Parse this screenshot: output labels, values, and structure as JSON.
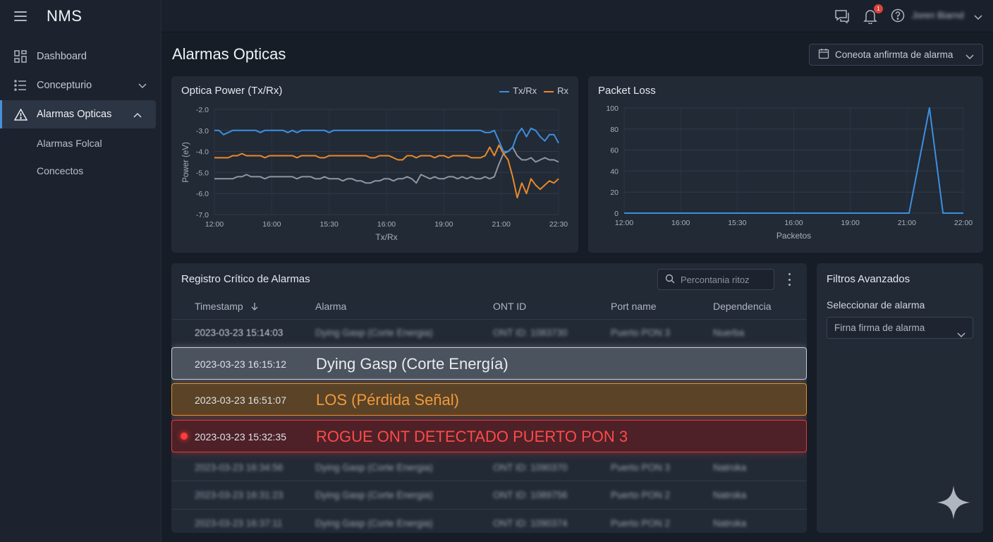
{
  "app": {
    "brand": "NMS"
  },
  "sidebar": {
    "items": [
      {
        "label": "Dashboard"
      },
      {
        "label": "Concepturio"
      },
      {
        "label": "Alarmas Opticas"
      }
    ],
    "subitems": [
      {
        "label": "Alarmas Folcal"
      },
      {
        "label": "Concectos"
      }
    ]
  },
  "topbar": {
    "notification_count": "1",
    "user_name": "Joren Biarnd"
  },
  "page": {
    "title": "Alarmas Opticas",
    "date_button": "Coneota anfirmta de alarma"
  },
  "colors": {
    "tx": "#3d8fe0",
    "rx": "#e8892b",
    "gray_series": "#8e96a3",
    "critical": "#e23a3a",
    "accent": "#4a90d9"
  },
  "chart_data": [
    {
      "type": "line",
      "title": "Optica Power (Tx/Rx)",
      "xlabel": "Tx/Rx",
      "ylabel": "Power (eV)",
      "x_ticks": [
        "12:00",
        "16:00",
        "15:30",
        "16:00",
        "19:00",
        "21:00",
        "22:30"
      ],
      "y_ticks": [
        "-2.0",
        "-3.0",
        "-4.0",
        "-5.0",
        "-6.0",
        "-7.0"
      ],
      "ylim": [
        -7.0,
        -2.0
      ],
      "grid": true,
      "legend": [
        "Tx/Rx",
        "Rx"
      ],
      "series": [
        {
          "name": "Tx/Rx",
          "color": "#3d8fe0",
          "values": [
            -3.0,
            -3.0,
            -3.2,
            -3.1,
            -3.0,
            -3.0,
            -3.0,
            -3.0,
            -3.0,
            -3.0,
            -3.1,
            -3.0,
            -3.0,
            -3.0,
            -3.0,
            -3.0,
            -3.1,
            -3.0,
            -3.1,
            -3.0,
            -3.0,
            -3.0,
            -3.0,
            -3.0,
            -3.0,
            -3.1,
            -3.0,
            -3.0,
            -3.0,
            -3.0,
            -3.0,
            -3.0,
            -3.0,
            -3.0,
            -3.0,
            -3.0,
            -3.0,
            -3.0,
            -3.0,
            -3.0,
            -3.0,
            -3.0,
            -3.0,
            -3.0,
            -3.0,
            -3.0,
            -3.0,
            -3.0,
            -3.0,
            -3.0,
            -3.0,
            -3.0,
            -3.0,
            -3.0,
            -3.0,
            -3.0,
            -3.0,
            -3.0,
            -3.0,
            -3.1,
            -3.1,
            -3.0,
            -3.5,
            -4.0,
            -4.0,
            -3.8,
            -3.2,
            -2.9,
            -3.3,
            -2.9,
            -3.0,
            -3.3,
            -3.5,
            -3.2,
            -3.2,
            -3.6
          ]
        },
        {
          "name": "Rx",
          "color": "#e8892b",
          "values": [
            -4.3,
            -4.3,
            -4.3,
            -4.3,
            -4.2,
            -4.2,
            -4.1,
            -4.2,
            -4.2,
            -4.2,
            -4.2,
            -4.3,
            -4.2,
            -4.2,
            -4.2,
            -4.2,
            -4.2,
            -4.2,
            -4.3,
            -4.2,
            -4.2,
            -4.2,
            -4.2,
            -4.3,
            -4.3,
            -4.2,
            -4.2,
            -4.2,
            -4.2,
            -4.2,
            -4.2,
            -4.2,
            -4.2,
            -4.2,
            -4.3,
            -4.3,
            -4.2,
            -4.2,
            -4.2,
            -4.3,
            -4.4,
            -4.4,
            -4.2,
            -4.2,
            -4.3,
            -4.2,
            -4.2,
            -4.2,
            -4.3,
            -4.2,
            -4.2,
            -4.3,
            -4.2,
            -4.2,
            -4.2,
            -4.2,
            -4.3,
            -4.3,
            -4.3,
            -4.2,
            -3.8,
            -4.2,
            -3.7,
            -4.1,
            -4.4,
            -5.2,
            -6.2,
            -5.5,
            -6.0,
            -5.3,
            -5.6,
            -5.8,
            -5.6,
            -5.4,
            -5.5,
            -5.3
          ]
        },
        {
          "name": "",
          "color": "#8e96a3",
          "values": [
            -5.3,
            -5.3,
            -5.3,
            -5.3,
            -5.3,
            -5.2,
            -5.2,
            -5.1,
            -5.2,
            -5.2,
            -5.2,
            -5.3,
            -5.2,
            -5.2,
            -5.2,
            -5.2,
            -5.2,
            -5.2,
            -5.3,
            -5.2,
            -5.2,
            -5.2,
            -5.3,
            -5.3,
            -5.2,
            -5.3,
            -5.3,
            -5.3,
            -5.4,
            -5.3,
            -5.3,
            -5.4,
            -5.4,
            -5.5,
            -5.5,
            -5.4,
            -5.4,
            -5.3,
            -5.3,
            -5.4,
            -5.3,
            -5.3,
            -5.2,
            -5.3,
            -5.5,
            -5.1,
            -5.2,
            -5.3,
            -5.2,
            -5.3,
            -5.3,
            -5.2,
            -5.2,
            -5.3,
            -5.2,
            -5.3,
            -5.2,
            -5.3,
            -5.3,
            -5.2,
            -5.3,
            -5.2,
            -4.6,
            -4.1,
            -4.0,
            -3.8,
            -4.2,
            -4.4,
            -4.4,
            -4.3,
            -4.5,
            -4.4,
            -4.3,
            -4.4,
            -4.4,
            -4.5
          ]
        }
      ]
    },
    {
      "type": "line",
      "title": "Packet Loss",
      "xlabel": "Packetos",
      "ylabel": "",
      "x_ticks": [
        "12:00",
        "16:00",
        "15:30",
        "16:00",
        "19:00",
        "21:00",
        "22:00"
      ],
      "y_ticks": [
        "100",
        "80",
        "60",
        "40",
        "20",
        "0"
      ],
      "ylim": [
        0,
        100
      ],
      "grid": true,
      "series": [
        {
          "name": "",
          "color": "#3d8fe0",
          "x": [
            0,
            0.84,
            0.9,
            0.94,
            1.0
          ],
          "values": [
            0,
            0,
            100,
            0,
            0
          ]
        }
      ]
    }
  ],
  "alarms": {
    "title": "Registro Crítico de Alarmas",
    "search_placeholder": "Percontania ritoz",
    "columns": [
      "Timestamp",
      "Alarma",
      "ONT ID",
      "Port name",
      "Dependencia"
    ],
    "rows_top": [
      {
        "ts": "2023-03-23 15:14:03",
        "alarm": "Dying Gasp (Corte Energia)",
        "ont": "ONT ID: 1083730",
        "port": "Puerto PON 3",
        "dep": "Nuerba"
      }
    ],
    "highlight": [
      {
        "ts": "2023-03-23 16:15:12",
        "msg": "Dying Gasp (Corte Energía)",
        "severity": "gray"
      },
      {
        "ts": "2023-03-23 16:51:07",
        "msg": "LOS (Pérdida Señal)",
        "severity": "orange"
      },
      {
        "ts": "2023-03-23 15:32:35",
        "msg": "ROGUE ONT DETECTADO PUERTO PON 3",
        "severity": "red"
      }
    ],
    "rows_bottom": [
      {
        "ts": "2023-03-23 16:34:56",
        "alarm": "Dying Gasp (Corte Energia)",
        "ont": "ONT ID: 1090370",
        "port": "Puerto PON 3",
        "dep": "Natroka"
      },
      {
        "ts": "2023-03-23 16:31:23",
        "alarm": "Dying Gasp (Corte Energia)",
        "ont": "ONT ID: 1089756",
        "port": "Puerto PON 2",
        "dep": "Natroka"
      },
      {
        "ts": "2023-03-23 16:37:11",
        "alarm": "Dying Gasp (Corte Energia)",
        "ont": "ONT ID: 1090374",
        "port": "Puerto PON 2",
        "dep": "Natroka"
      }
    ]
  },
  "filters": {
    "title": "Filtros Avanzados",
    "select_label": "Seleccionar de alarma",
    "select_value": "Firna firma de alarma"
  }
}
